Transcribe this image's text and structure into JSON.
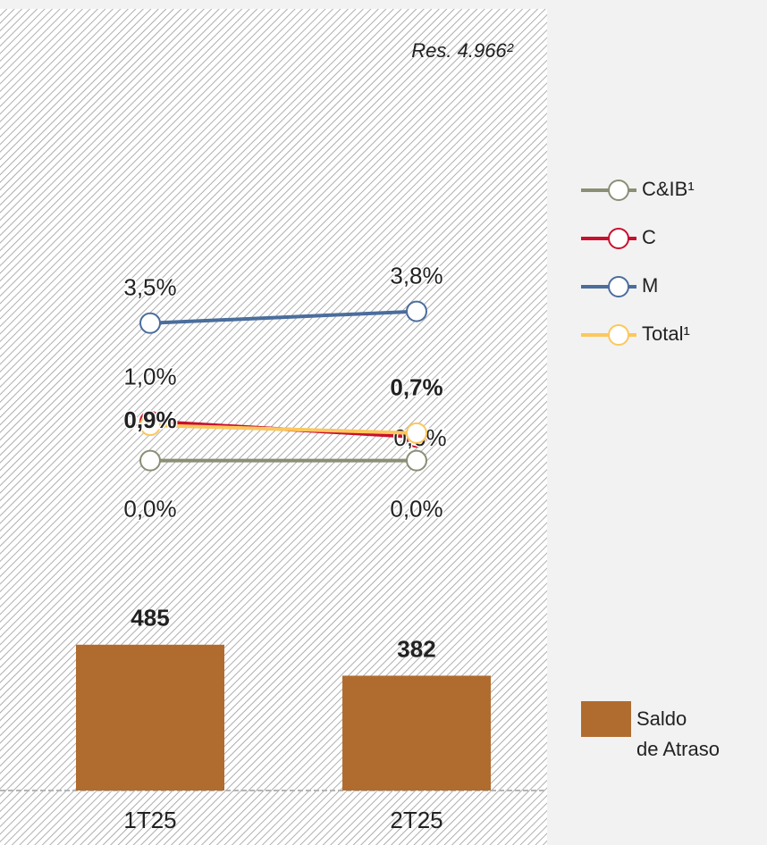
{
  "chart_data": {
    "type": "combo",
    "annotation": "Res. 4.966²",
    "categories": [
      "1T25",
      "2T25"
    ],
    "ylim": [
      0,
      2600
    ],
    "y2lim": [
      -8.4,
      11.5
    ],
    "series": [
      {
        "name": "C&IB¹",
        "type": "line",
        "axis": "y2",
        "color": "#8a8f75",
        "values": [
          0.0,
          0.0
        ],
        "value_labels": [
          "0,0%",
          "0,0%"
        ]
      },
      {
        "name": "C",
        "type": "line",
        "axis": "y2",
        "color": "#c8102e",
        "values": [
          1.0,
          0.6
        ],
        "value_labels": [
          "1,0%",
          "0,6%"
        ]
      },
      {
        "name": "M",
        "type": "line",
        "axis": "y2",
        "color": "#4a6d9c",
        "values": [
          3.5,
          3.8
        ],
        "value_labels": [
          "3,5%",
          "3,8%"
        ]
      },
      {
        "name": "Total¹",
        "type": "line",
        "axis": "y2",
        "color": "#fcc75c",
        "values": [
          0.9,
          0.7
        ],
        "value_labels": [
          "0,9%",
          "0,7%"
        ],
        "bold_labels": true
      },
      {
        "name": "Saldo\nde Atraso",
        "type": "bar",
        "color": "#b06c2e",
        "values": [
          485,
          382
        ],
        "bold_labels": true
      }
    ]
  }
}
